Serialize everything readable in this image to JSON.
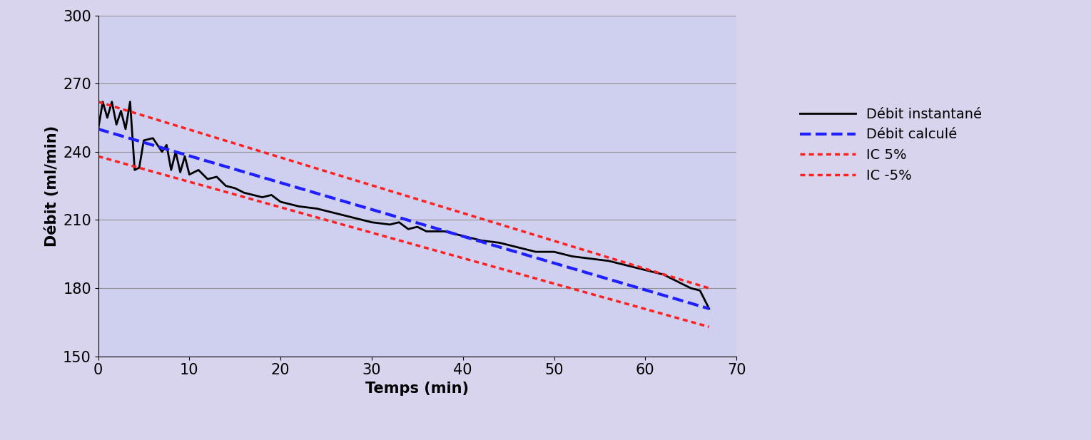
{
  "chart_data": {
    "type": "line",
    "x_label": "Temps (min)",
    "y_label": "Débit (ml/min)",
    "xlim": [
      0,
      70
    ],
    "xticks": [
      0,
      10,
      20,
      30,
      40,
      50,
      60,
      70
    ],
    "ylim": [
      150,
      300
    ],
    "yticks": [
      150,
      180,
      210,
      240,
      270,
      300
    ],
    "grid": "y",
    "legend": "right",
    "series": [
      {
        "name": "Débit instantané",
        "color": "#000000",
        "line_style": "solid",
        "x": [
          0,
          0.5,
          1,
          1.5,
          2,
          2.5,
          3,
          3.5,
          4,
          4.5,
          5,
          6,
          7,
          7.5,
          8,
          8.5,
          9,
          9.5,
          10,
          11,
          12,
          13,
          14,
          15,
          16,
          17,
          18,
          19,
          20,
          22,
          24,
          26,
          28,
          30,
          32,
          33,
          34,
          35,
          36,
          38,
          40,
          42,
          44,
          46,
          48,
          50,
          52,
          54,
          56,
          58,
          60,
          62,
          64,
          65,
          66,
          67
        ],
        "values": [
          250,
          262,
          255,
          262,
          252,
          258,
          250,
          262,
          232,
          233,
          245,
          246,
          240,
          243,
          232,
          240,
          231,
          238,
          230,
          232,
          228,
          229,
          225,
          224,
          222,
          221,
          220,
          221,
          218,
          216,
          215,
          213,
          211,
          209,
          208,
          209,
          206,
          207,
          205,
          205,
          203,
          201,
          200,
          198,
          196,
          196,
          194,
          193,
          192,
          190,
          188,
          186,
          182,
          180,
          179,
          171
        ]
      },
      {
        "name": "Débit calculé",
        "color": "#1f1fff",
        "line_style": "dashed",
        "x": [
          0,
          67
        ],
        "values": [
          250,
          171
        ]
      },
      {
        "name": "IC 5%",
        "color": "#ff2020",
        "line_style": "dotted",
        "x": [
          0,
          67
        ],
        "values": [
          262,
          180
        ]
      },
      {
        "name": "IC -5%",
        "color": "#ff2020",
        "line_style": "dotted",
        "x": [
          0,
          67
        ],
        "values": [
          238,
          163
        ]
      }
    ]
  }
}
